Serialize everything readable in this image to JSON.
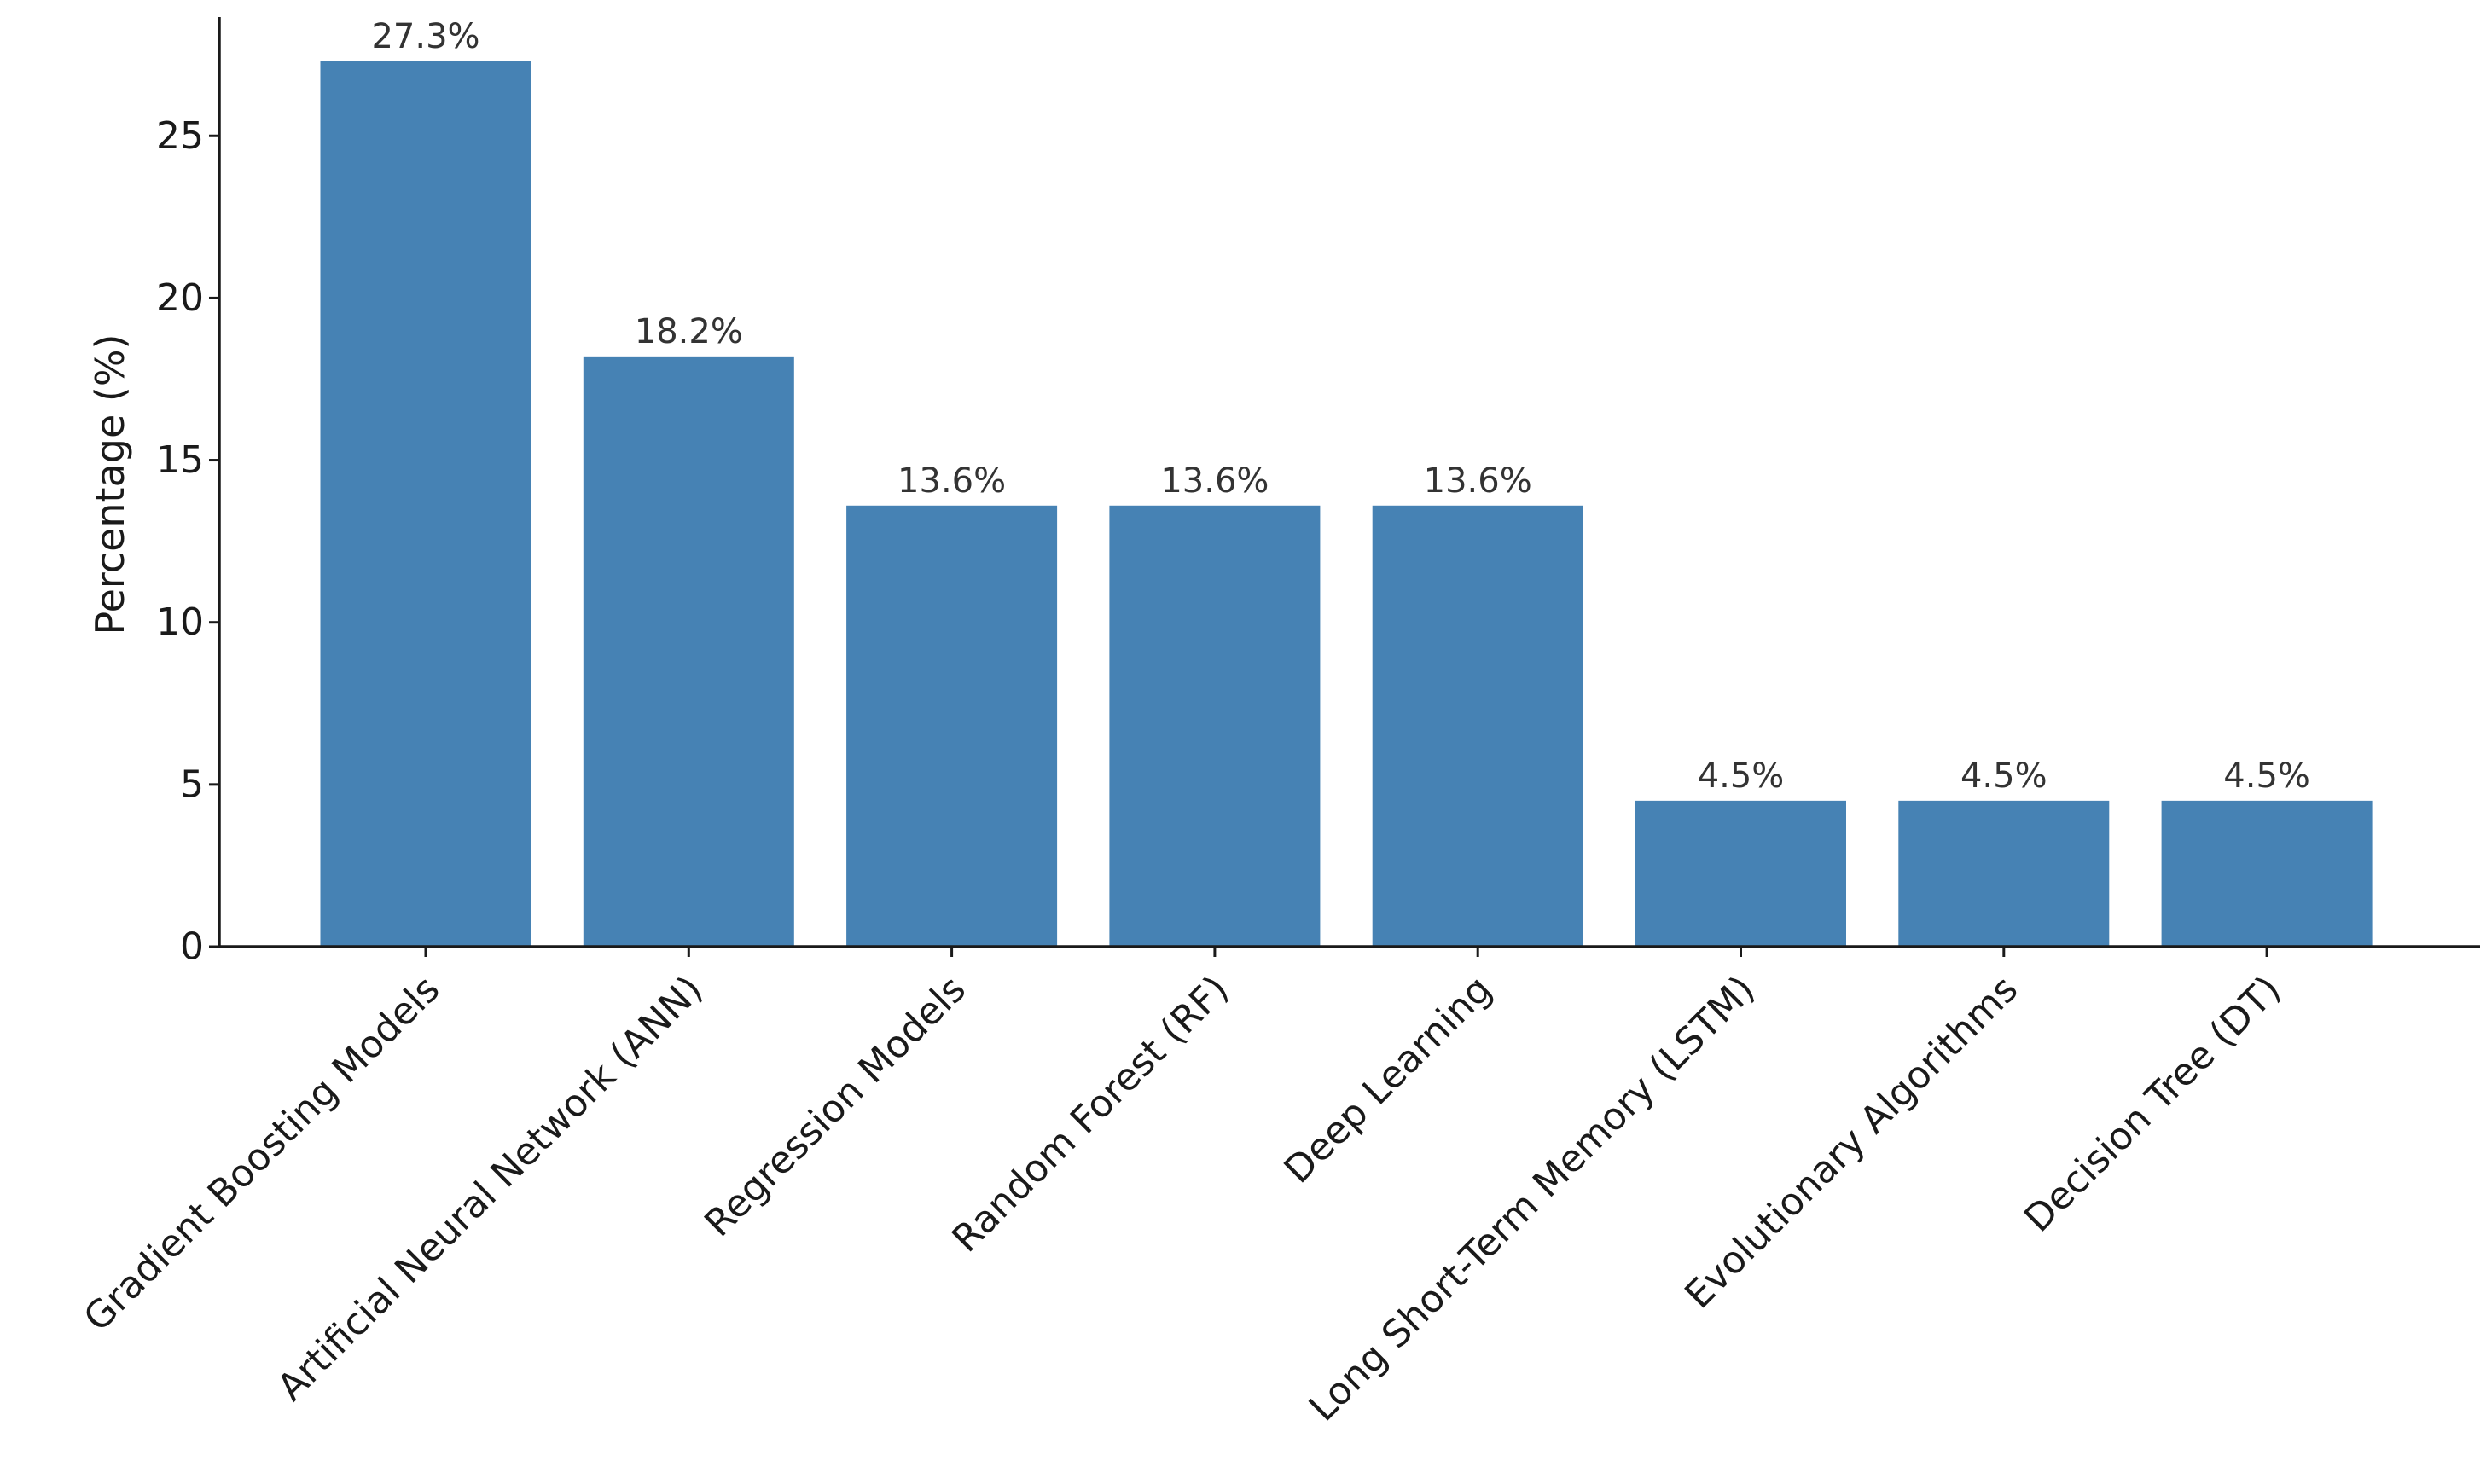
{
  "chart_data": {
    "type": "bar",
    "title": "",
    "xlabel": "",
    "ylabel": "Percentage (%)",
    "ylim": [
      0,
      28.66
    ],
    "yticks": [
      0,
      5,
      10,
      15,
      20,
      25
    ],
    "grid": false,
    "categories": [
      "Gradient Boosting Models",
      "Artificial Neural Network (ANN)",
      "Regression Models",
      "Random Forest (RF)",
      "Deep Learning",
      "Long Short-Term Memory (LSTM)",
      "Evolutionary Algorithms",
      "Decision Tree (DT)"
    ],
    "values": [
      27.3,
      18.2,
      13.6,
      13.6,
      13.6,
      4.5,
      4.5,
      4.5
    ],
    "data_labels": [
      "27.3%",
      "18.2%",
      "13.6%",
      "13.6%",
      "13.6%",
      "4.5%",
      "4.5%",
      "4.5%"
    ],
    "bar_color": "#4682b4"
  }
}
